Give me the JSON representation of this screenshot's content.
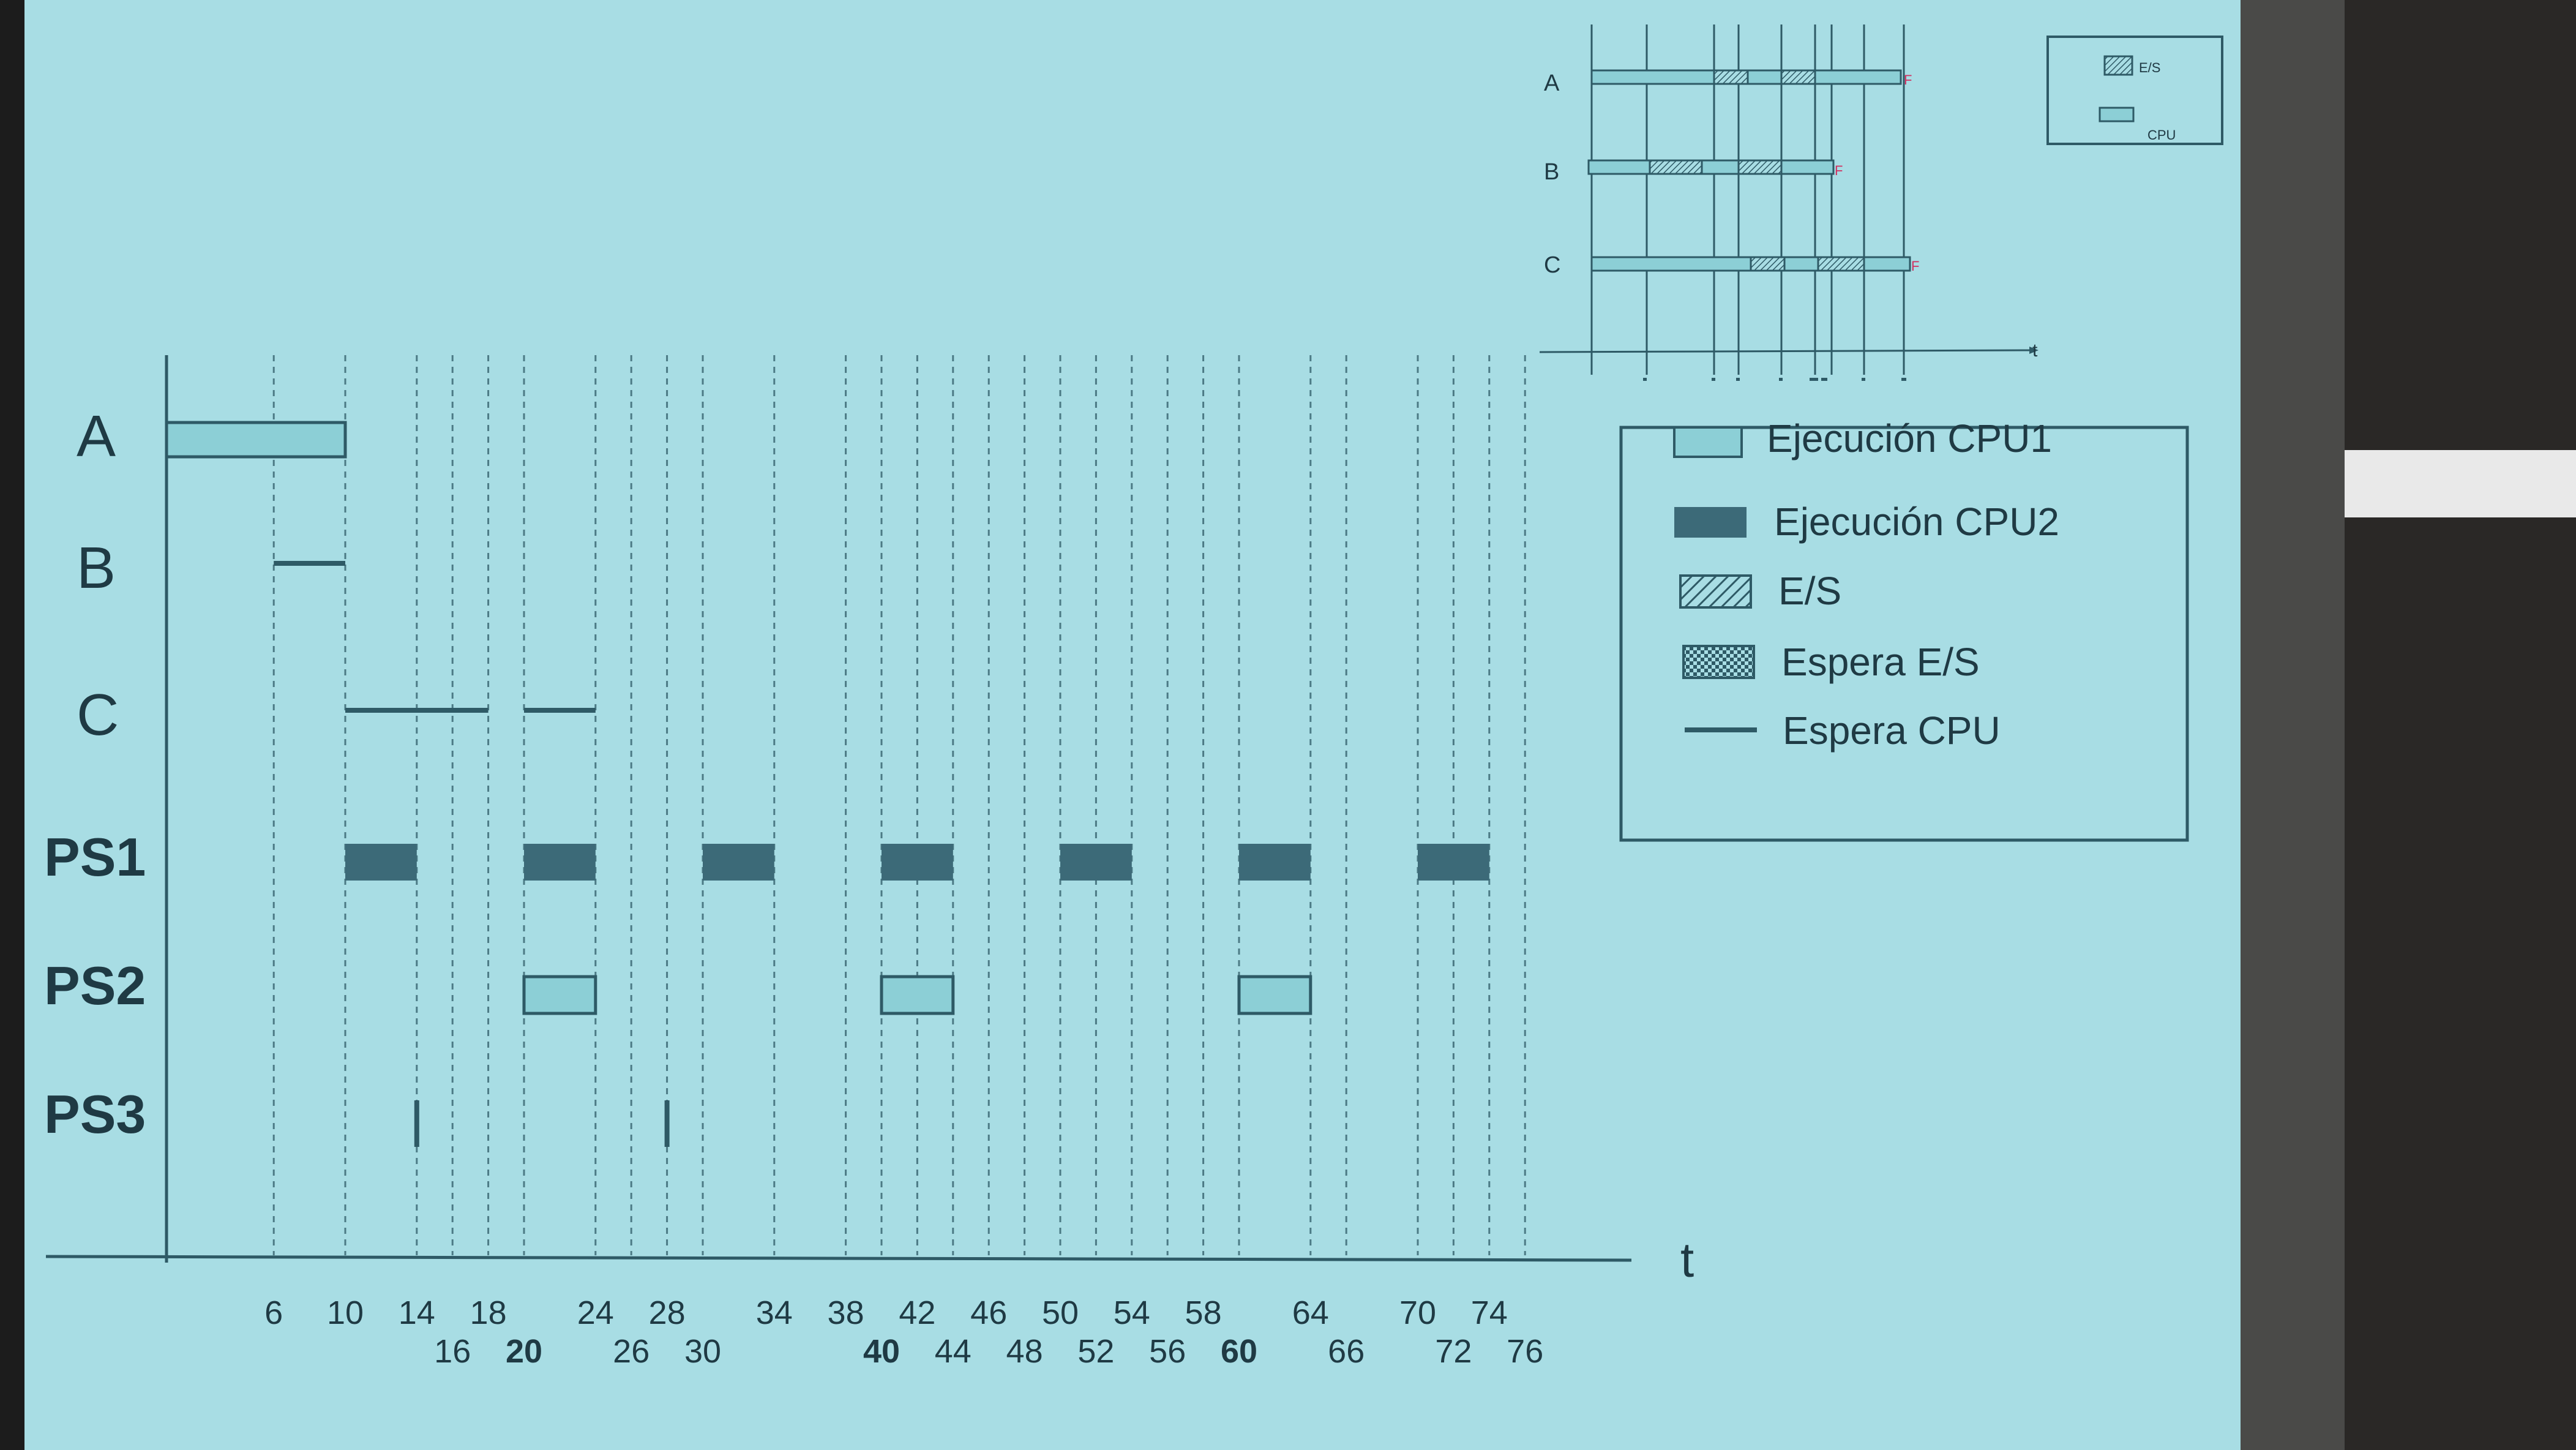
{
  "main_chart": {
    "rows": [
      "A",
      "B",
      "C",
      "PS1",
      "PS2",
      "PS3"
    ],
    "axis_label": "t",
    "ticks_top": [
      "6",
      "10",
      "14",
      "18",
      "24",
      "28",
      "34",
      "38",
      "42",
      "46",
      "50",
      "54",
      "58",
      "64",
      "70",
      "74"
    ],
    "ticks_bottom": [
      "16",
      "20",
      "26",
      "30",
      "40",
      "44",
      "48",
      "52",
      "56",
      "60",
      "66",
      "72",
      "76"
    ],
    "bold_ticks": [
      "20",
      "40",
      "60"
    ],
    "gridlines": [
      6,
      10,
      14,
      16,
      18,
      20,
      24,
      26,
      28,
      30,
      34,
      38,
      40,
      42,
      44,
      46,
      48,
      50,
      52,
      54,
      56,
      58,
      60,
      64,
      66,
      70,
      72,
      74,
      76
    ],
    "bars": [
      {
        "row": "A",
        "type": "cpu1",
        "start": 0,
        "end": 10
      },
      {
        "row": "B",
        "type": "wait_cpu",
        "start": 6,
        "end": 10
      },
      {
        "row": "C",
        "type": "wait_cpu",
        "start": 10,
        "end": 18
      },
      {
        "row": "C",
        "type": "wait_cpu",
        "start": 20,
        "end": 24
      },
      {
        "row": "PS1",
        "type": "cpu2",
        "start": 10,
        "end": 14
      },
      {
        "row": "PS1",
        "type": "cpu2",
        "start": 20,
        "end": 24
      },
      {
        "row": "PS1",
        "type": "cpu2",
        "start": 30,
        "end": 34
      },
      {
        "row": "PS1",
        "type": "cpu2",
        "start": 40,
        "end": 44
      },
      {
        "row": "PS1",
        "type": "cpu2",
        "start": 50,
        "end": 54
      },
      {
        "row": "PS1",
        "type": "cpu2",
        "start": 60,
        "end": 64
      },
      {
        "row": "PS1",
        "type": "cpu2",
        "start": 70,
        "end": 74
      },
      {
        "row": "PS2",
        "type": "cpu1",
        "start": 20,
        "end": 24
      },
      {
        "row": "PS2",
        "type": "cpu1",
        "start": 40,
        "end": 44
      },
      {
        "row": "PS2",
        "type": "cpu1",
        "start": 60,
        "end": 64
      },
      {
        "row": "PS3",
        "type": "tick",
        "start": 14,
        "end": 14
      },
      {
        "row": "PS3",
        "type": "tick",
        "start": 28,
        "end": 28
      }
    ]
  },
  "legend": {
    "items": [
      {
        "key": "cpu1",
        "label": "Ejecución CPU1"
      },
      {
        "key": "cpu2",
        "label": "Ejecución CPU2"
      },
      {
        "key": "io",
        "label": "E/S"
      },
      {
        "key": "io_wait",
        "label": "Espera E/S"
      },
      {
        "key": "cpu_wait",
        "label": "Espera CPU"
      }
    ]
  },
  "inset_chart": {
    "rows": [
      "A",
      "B",
      "C"
    ],
    "axis_label": "t",
    "end_marker": "F",
    "legend": [
      {
        "key": "io",
        "label": "E/S"
      },
      {
        "key": "cpu",
        "label": "CPU"
      }
    ]
  },
  "colors": {
    "screen_bg": "#a8dde4",
    "cpu1_fill": "#8ccfd6",
    "cpu2_fill": "#3c6a78",
    "ink": "#2e5a66",
    "text": "#1f3a44",
    "marker": "#d03060"
  }
}
